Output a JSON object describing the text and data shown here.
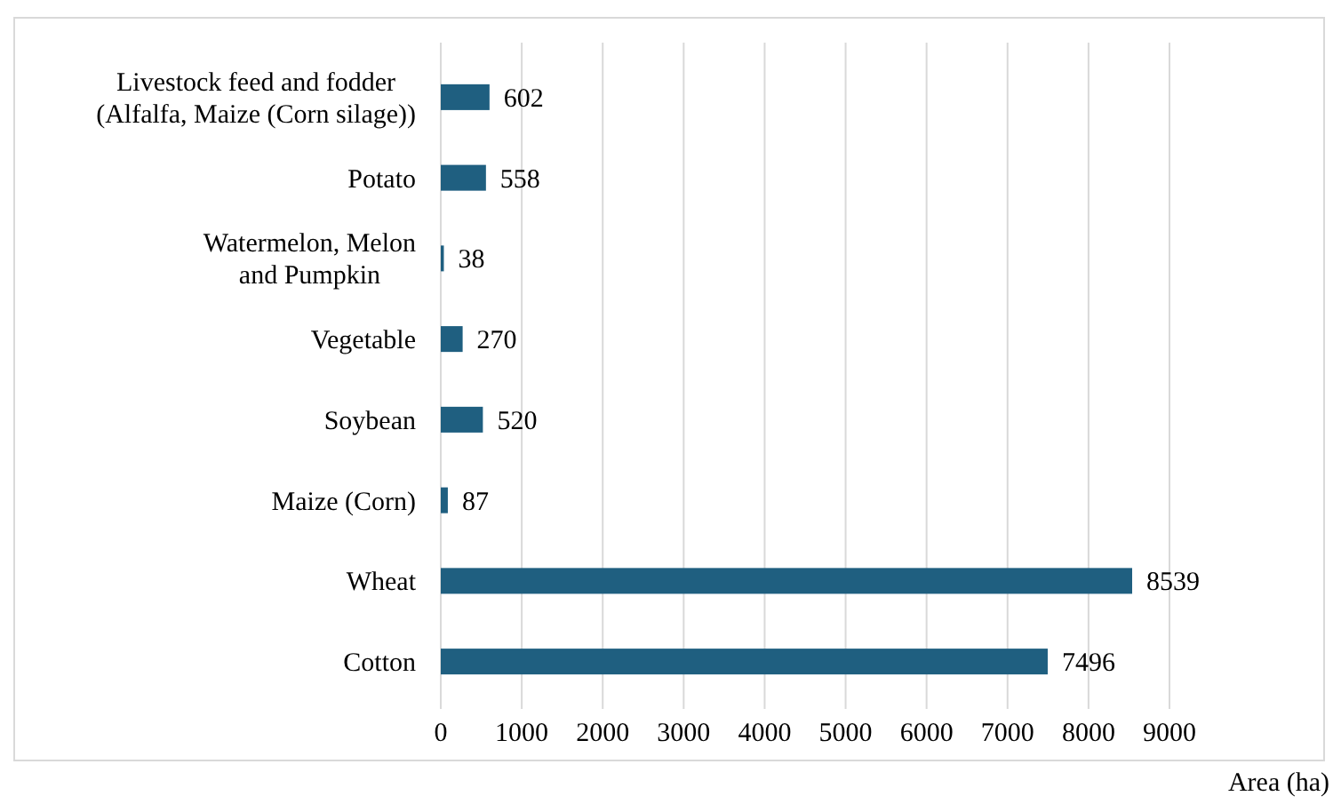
{
  "chart_data": {
    "type": "bar",
    "orientation": "horizontal",
    "xlabel": "Area (ha)",
    "categories": [
      "Livestock feed and fodder\n(Alfalfa, Maize (Corn silage))",
      "Potato",
      "Watermelon, Melon\nand Pumpkin",
      "Vegetable",
      "Soybean",
      "Maize (Corn)",
      "Wheat",
      "Cotton"
    ],
    "values": [
      602,
      558,
      38,
      270,
      520,
      87,
      8539,
      7496
    ],
    "color": "#1f5f80",
    "xlim": [
      0,
      9000
    ],
    "xticks": [
      0,
      1000,
      2000,
      3000,
      4000,
      5000,
      6000,
      7000,
      8000,
      9000
    ],
    "grid": "x",
    "data_labels": true
  }
}
